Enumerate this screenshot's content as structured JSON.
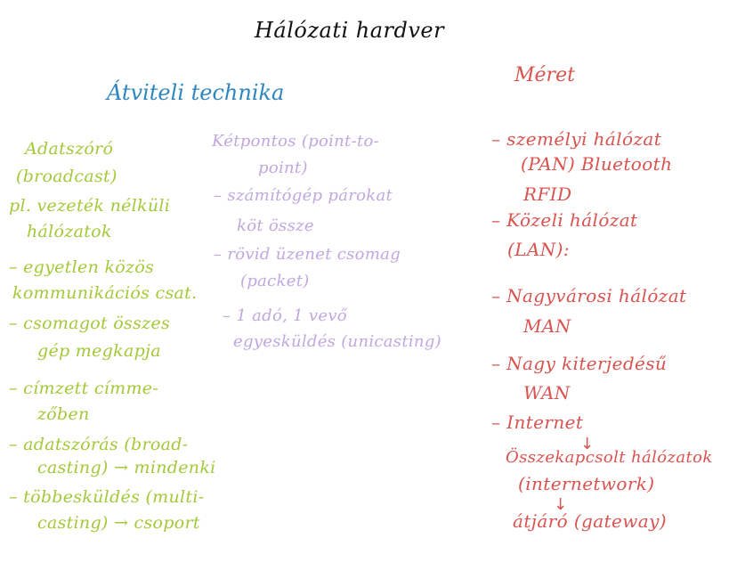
{
  "title": "Hálózati hardver",
  "colors": {
    "title": "#111111",
    "blue_heading": "#2e86c1",
    "green": "#a3c93a",
    "purple": "#c0a8de",
    "red": "#d9534f"
  },
  "left_heading": "Átviteli technika",
  "right_heading": "Méret",
  "green_column": {
    "lines": [
      "Adatszóró",
      "(broadcast)",
      "pl. vezeték nélküli",
      "hálózatok",
      "– egyetlen közös",
      "kommunikációs csat.",
      "– csomagot összes",
      "gép megkapja",
      "– címzett címme-",
      "zőben",
      "– adatszórás (broad-",
      "casting) → mindenki",
      "– többesküldés (multi-",
      "casting) → csoport"
    ]
  },
  "purple_column": {
    "lines": [
      "Kétpontos (point-to-",
      "point)",
      "– számítógép párokat",
      "köt össze",
      "– rövid üzenet csomag",
      "(packet)",
      "– 1 adó, 1 vevő",
      "egyesküldés (unicasting)"
    ]
  },
  "red_column": {
    "lines": [
      "– személyi hálózat",
      "(PAN) Bluetooth",
      "RFID",
      "– Közeli hálózat",
      "(LAN):",
      "– Nagyvárosi hálózat",
      "MAN",
      "– Nagy kiterjedésű",
      "WAN",
      "– Internet",
      "Összekapcsolt hálózatok",
      "(internetwork)",
      "átjáró (gateway)"
    ],
    "arrows": [
      "↓",
      "↓"
    ]
  }
}
